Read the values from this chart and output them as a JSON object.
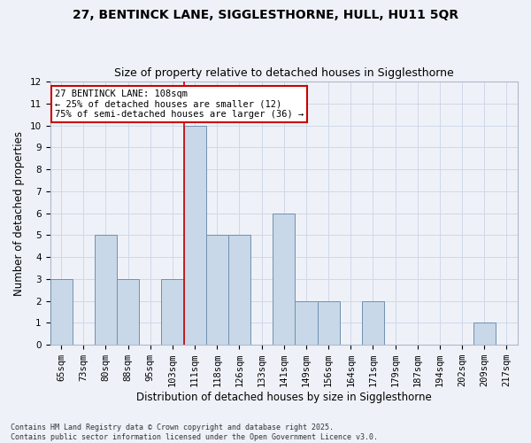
{
  "title1": "27, BENTINCK LANE, SIGGLESTHORNE, HULL, HU11 5QR",
  "title2": "Size of property relative to detached houses in Sigglesthorne",
  "xlabel": "Distribution of detached houses by size in Sigglesthorne",
  "ylabel": "Number of detached properties",
  "categories": [
    "65sqm",
    "73sqm",
    "80sqm",
    "88sqm",
    "95sqm",
    "103sqm",
    "111sqm",
    "118sqm",
    "126sqm",
    "133sqm",
    "141sqm",
    "149sqm",
    "156sqm",
    "164sqm",
    "171sqm",
    "179sqm",
    "187sqm",
    "194sqm",
    "202sqm",
    "209sqm",
    "217sqm"
  ],
  "values": [
    3,
    0,
    5,
    3,
    0,
    3,
    10,
    5,
    5,
    0,
    6,
    2,
    2,
    0,
    2,
    0,
    0,
    0,
    0,
    1,
    0
  ],
  "bar_color": "#c8d8e8",
  "bar_edge_color": "#7090b0",
  "grid_color": "#d0d8e8",
  "background_color": "#eef2f8",
  "vline_x": 6.0,
  "annotation_text_line1": "27 BENTINCK LANE: 108sqm",
  "annotation_text_line2": "← 25% of detached houses are smaller (12)",
  "annotation_text_line3": "75% of semi-detached houses are larger (36) →",
  "annotation_box_color": "#ffffff",
  "annotation_edge_color": "#cc0000",
  "vline_color": "#cc0000",
  "ylim": [
    0,
    12
  ],
  "yticks": [
    0,
    1,
    2,
    3,
    4,
    5,
    6,
    7,
    8,
    9,
    10,
    11,
    12
  ],
  "footnote": "Contains HM Land Registry data © Crown copyright and database right 2025.\nContains public sector information licensed under the Open Government Licence v3.0.",
  "title1_fontsize": 10,
  "title2_fontsize": 9,
  "xlabel_fontsize": 8.5,
  "ylabel_fontsize": 8.5,
  "tick_fontsize": 7.5,
  "annotation_fontsize": 7.5
}
